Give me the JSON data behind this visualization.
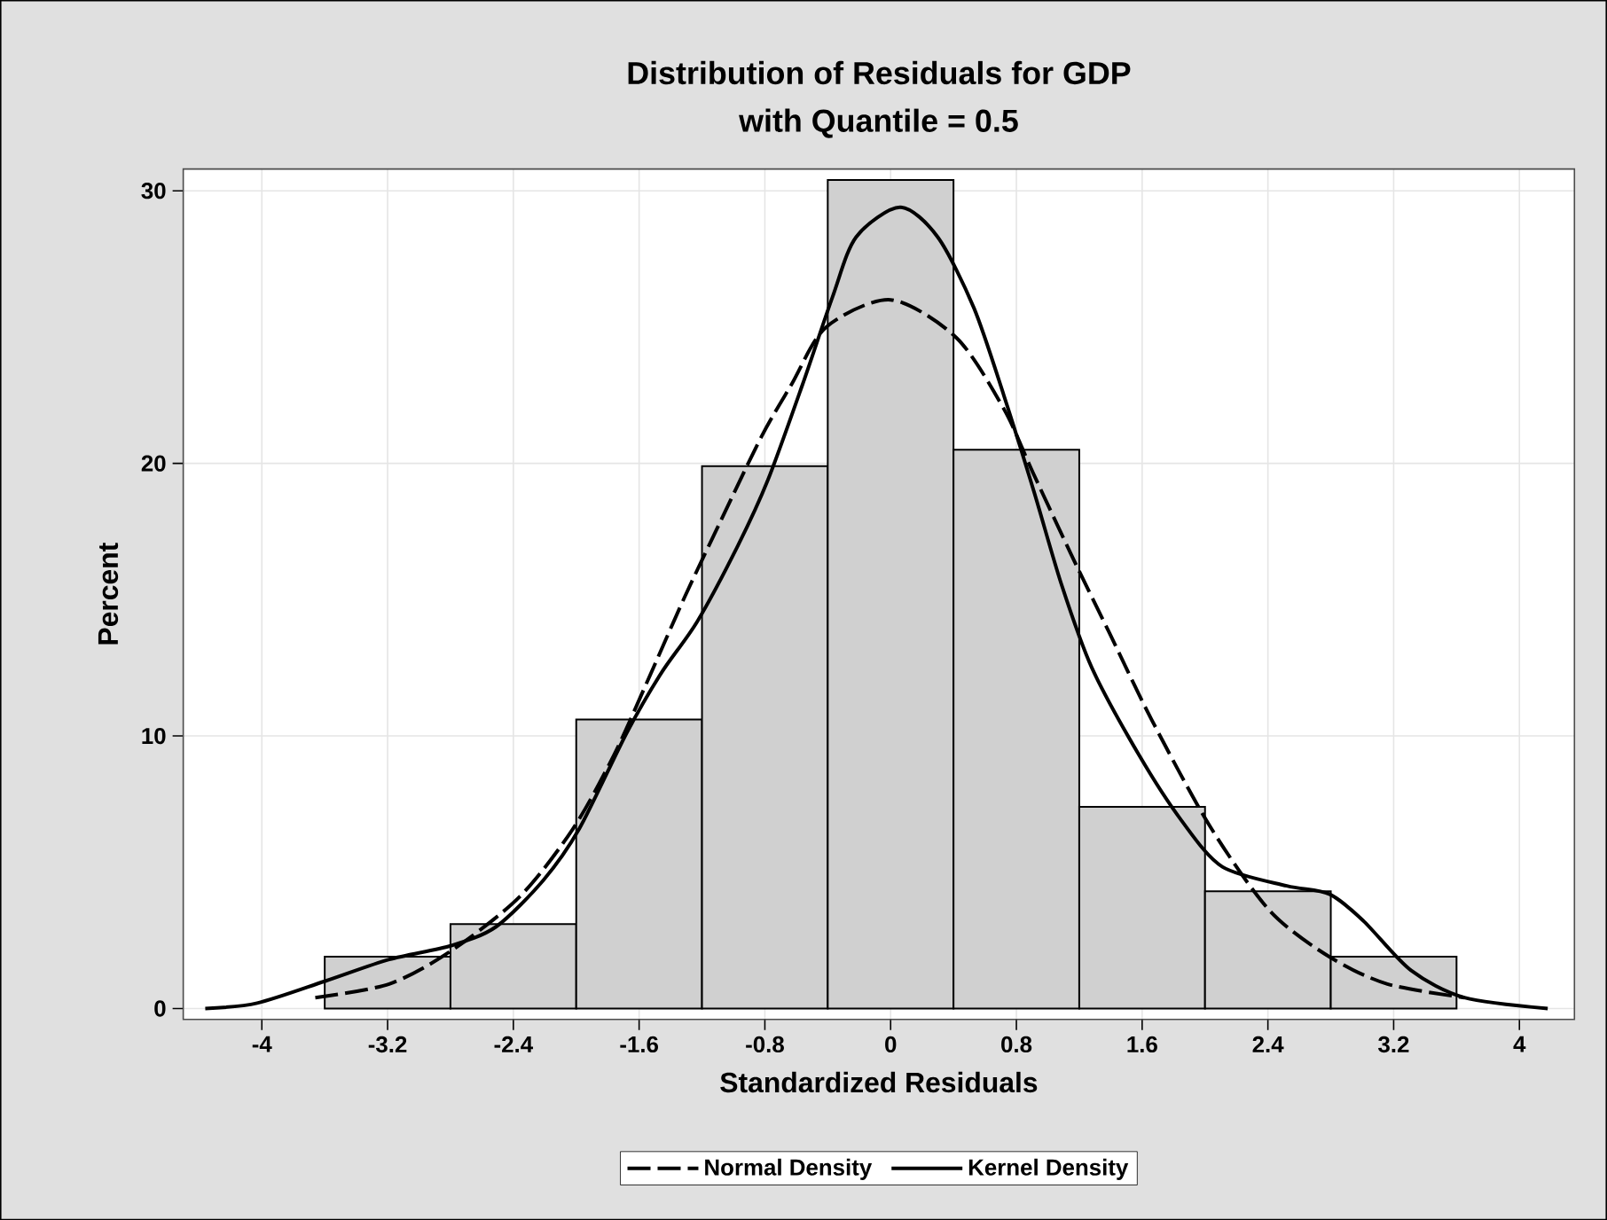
{
  "chart_data": {
    "type": "histogram",
    "title": "Distribution of Residuals for GDP",
    "subtitle": "with Quantile = 0.5",
    "xlabel": "Standardized Residuals",
    "ylabel": "Percent",
    "bins": [
      -3.6,
      -2.8,
      -2.0,
      -1.2,
      -0.4,
      0.4,
      1.2,
      2.0,
      2.8,
      3.6
    ],
    "values": [
      1.9,
      3.1,
      10.6,
      19.9,
      30.4,
      20.5,
      7.4,
      4.3,
      1.9
    ],
    "color": "#d0d0d0",
    "series": [
      {
        "name": "Normal Density",
        "type": "line",
        "line_style": "dashed",
        "color": "#000000",
        "x": [
          -3.66,
          -3.19,
          -2.8,
          -2.36,
          -2.02,
          -1.76,
          -1.54,
          -1.31,
          -1.08,
          -0.82,
          -0.63,
          -0.41,
          0.0,
          0.42,
          0.72,
          0.91,
          1.17,
          1.39,
          1.66,
          2.03,
          2.41,
          2.79,
          3.16,
          3.65
        ],
        "values": [
          0.4,
          0.9,
          2.1,
          4.1,
          6.6,
          9.3,
          12.1,
          15.1,
          17.9,
          21.0,
          22.9,
          25.0,
          26.0,
          24.6,
          22.0,
          19.6,
          16.4,
          13.8,
          10.6,
          6.7,
          3.6,
          1.9,
          0.9,
          0.4
        ]
      },
      {
        "name": "Kernel Density",
        "type": "line",
        "line_style": "solid",
        "color": "#000000",
        "x": [
          -4.36,
          -4.03,
          -3.6,
          -3.19,
          -2.8,
          -2.51,
          -2.21,
          -1.98,
          -1.68,
          -1.46,
          -1.23,
          -0.97,
          -0.78,
          -0.56,
          -0.37,
          -0.22,
          0.06,
          0.3,
          0.53,
          0.72,
          0.91,
          1.09,
          1.28,
          1.58,
          1.85,
          2.11,
          2.52,
          2.79,
          3.01,
          3.31,
          3.65,
          4.18
        ],
        "values": [
          0.0,
          0.2,
          1.0,
          1.8,
          2.3,
          3.0,
          4.7,
          6.6,
          10.1,
          12.3,
          14.2,
          17.0,
          19.4,
          22.9,
          26.1,
          28.3,
          29.4,
          28.3,
          25.7,
          22.5,
          19.0,
          15.5,
          12.5,
          9.3,
          6.9,
          5.2,
          4.5,
          4.2,
          3.2,
          1.4,
          0.4,
          0.0
        ]
      }
    ],
    "xlim": [
      -4.5,
      4.35
    ],
    "ylim": [
      -0.4,
      30.8
    ],
    "xticks": [
      -4,
      -3.2,
      -2.4,
      -1.6,
      -0.8,
      0,
      0.8,
      1.6,
      2.4,
      3.2,
      4
    ],
    "yticks": [
      0,
      10,
      20,
      30
    ],
    "grid": true,
    "legend": "bottom"
  }
}
